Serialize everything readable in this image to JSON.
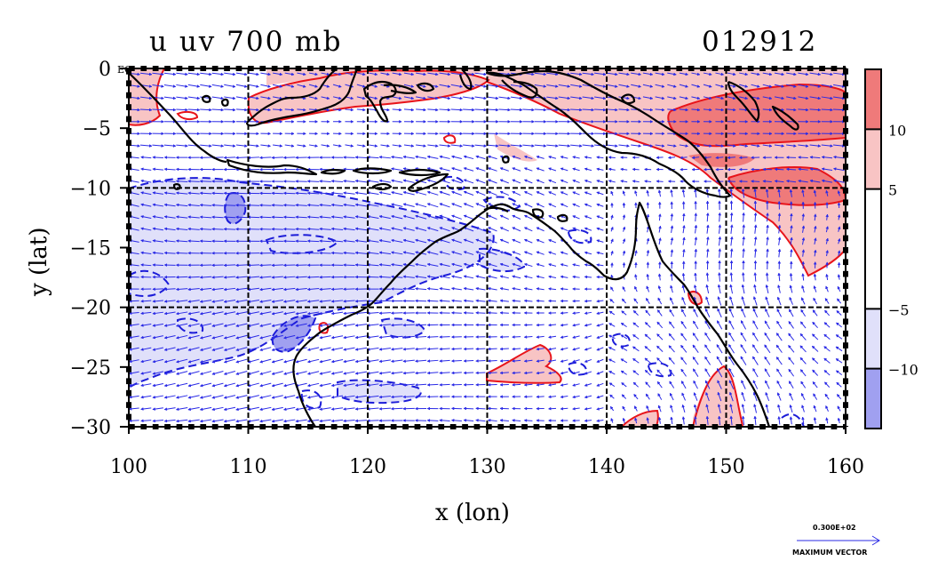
{
  "title": {
    "left": "u uv 700 mb",
    "right": "012912"
  },
  "axes": {
    "xlabel": "x (lon)",
    "ylabel": "y (lat)",
    "xlim": [
      100,
      160
    ],
    "ylim": [
      -30,
      0
    ],
    "x_ticks": [
      100,
      110,
      120,
      130,
      140,
      150,
      160
    ],
    "x_tick_labels": [
      "100",
      "110",
      "120",
      "130",
      "140",
      "150",
      "160"
    ],
    "y_ticks": [
      0,
      -5,
      -10,
      -15,
      -20,
      -25,
      -30
    ],
    "y_tick_labels": [
      "0",
      "−5",
      "−10",
      "−15",
      "−20",
      "−25",
      "−30"
    ],
    "eq_label": "EQ",
    "grid_x": [
      110,
      120,
      130,
      140,
      150
    ],
    "grid_y": [
      -10,
      -20
    ]
  },
  "colorbar": {
    "labels": [
      "10",
      "5",
      "−5",
      "−10"
    ],
    "label_values": [
      10,
      5,
      -5,
      -10
    ],
    "bounds": [
      -15,
      -10,
      -5,
      5,
      10,
      15
    ],
    "colors": [
      "#a0a0f0",
      "#e0e0fa",
      "#ffffff",
      "#f8c4c4",
      "#ef7a7a"
    ]
  },
  "legend": {
    "vector_value": "0.300E+02",
    "vector_label": "MAXIMUM VECTOR"
  },
  "colors": {
    "positive_contour": "#e8141a",
    "negative_contour": "#1c1cd8",
    "vector": "#2a2ae6",
    "coast": "#000000",
    "pos_fill_1": "#f8c4c4",
    "pos_fill_2": "#ef7a7a",
    "neg_fill_1": "#e0e0fa",
    "neg_fill_2": "#a0a0f0"
  }
}
